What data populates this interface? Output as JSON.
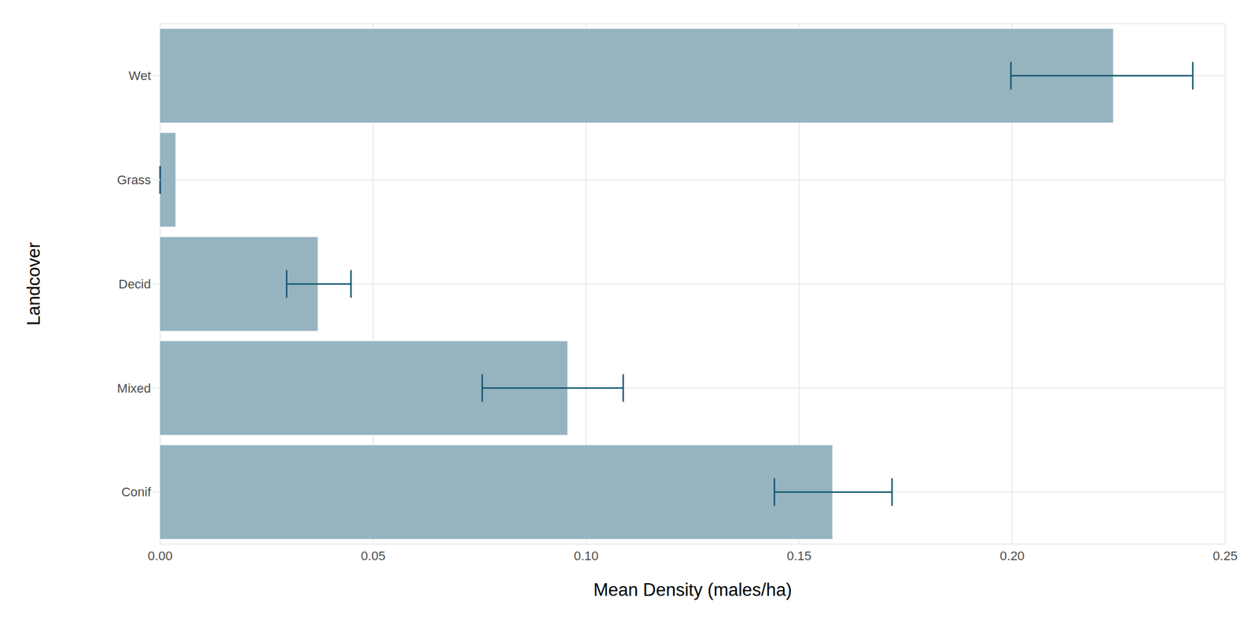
{
  "chart_data": {
    "type": "bar",
    "orientation": "horizontal",
    "x_label": "Mean Density (males/ha)",
    "y_label": "Landcover",
    "categories": [
      "Wet",
      "Grass",
      "Decid",
      "Mixed",
      "Conif"
    ],
    "values": [
      0.2237,
      0.0036,
      0.037,
      0.0956,
      0.1578
    ],
    "error_low": [
      0.1997,
      0,
      0.0297,
      0.0756,
      0.1442
    ],
    "error_high": [
      0.2424,
      0,
      0.0448,
      0.1087,
      0.1718
    ],
    "color": "#96b4c0",
    "error_color": "#11566e",
    "xlim": [
      0,
      0.25
    ],
    "xticks": [
      {
        "value": 0,
        "label": "0.00"
      },
      {
        "value": 0.05,
        "label": "0.05"
      },
      {
        "value": 0.1,
        "label": "0.10"
      },
      {
        "value": 0.15,
        "label": "0.15"
      },
      {
        "value": 0.2,
        "label": "0.20"
      },
      {
        "value": 0.25,
        "label": "0.25"
      }
    ],
    "grid": true
  }
}
